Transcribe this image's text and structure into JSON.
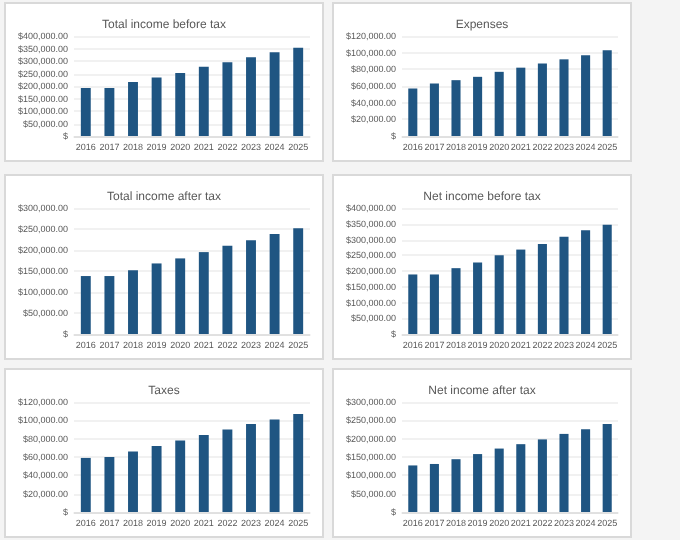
{
  "chart_data": [
    {
      "type": "bar",
      "title": "Total income before tax",
      "categories": [
        "2016",
        "2017",
        "2018",
        "2019",
        "2020",
        "2021",
        "2022",
        "2023",
        "2024",
        "2025"
      ],
      "grid": "y",
      "series": [
        {
          "color": "#1f5582",
          "values": [
            192000,
            192000,
            216000,
            234000,
            252000,
            277000,
            295000,
            315000,
            335000,
            353000
          ]
        }
      ],
      "ylim": [
        0,
        400000
      ],
      "yticks": [
        {
          "value": 0,
          "label": "$"
        },
        {
          "value": 50000,
          "label": "$50,000.00"
        },
        {
          "value": 100000,
          "label": "$100,000.00"
        },
        {
          "value": 150000,
          "label": "$150,000.00"
        },
        {
          "value": 200000,
          "label": "$200,000.00"
        },
        {
          "value": 250000,
          "label": "$250,000.00"
        },
        {
          "value": 300000,
          "label": "$300,000.00"
        },
        {
          "value": 350000,
          "label": "$350,000.00"
        },
        {
          "value": 400000,
          "label": "$400,000.00"
        }
      ]
    },
    {
      "type": "bar",
      "title": "Expenses",
      "categories": [
        "2016",
        "2017",
        "2018",
        "2019",
        "2020",
        "2021",
        "2022",
        "2023",
        "2024",
        "2025"
      ],
      "grid": "y",
      "series": [
        {
          "color": "#1f5582",
          "values": [
            57000,
            63000,
            67000,
            71000,
            77000,
            82000,
            87000,
            92000,
            97000,
            103000
          ]
        }
      ],
      "ylim": [
        0,
        120000
      ],
      "yticks": [
        {
          "value": 0,
          "label": "$"
        },
        {
          "value": 20000,
          "label": "$20,000.00"
        },
        {
          "value": 40000,
          "label": "$40,000.00"
        },
        {
          "value": 60000,
          "label": "$60,000.00"
        },
        {
          "value": 80000,
          "label": "$80,000.00"
        },
        {
          "value": 100000,
          "label": "$100,000.00"
        },
        {
          "value": 120000,
          "label": "$120,000.00"
        }
      ]
    },
    {
      "type": "bar",
      "title": "Total income after tax",
      "categories": [
        "2016",
        "2017",
        "2018",
        "2019",
        "2020",
        "2021",
        "2022",
        "2023",
        "2024",
        "2025"
      ],
      "grid": "y",
      "series": [
        {
          "color": "#1f5582",
          "values": [
            138000,
            138000,
            152000,
            168000,
            180000,
            195000,
            210000,
            223000,
            238000,
            252000
          ]
        }
      ],
      "ylim": [
        0,
        300000
      ],
      "yticks": [
        {
          "value": 0,
          "label": "$"
        },
        {
          "value": 50000,
          "label": "$50,000.00"
        },
        {
          "value": 100000,
          "label": "$100,000.00"
        },
        {
          "value": 150000,
          "label": "$150,000.00"
        },
        {
          "value": 200000,
          "label": "$200,000.00"
        },
        {
          "value": 250000,
          "label": "$250,000.00"
        },
        {
          "value": 300000,
          "label": "$300,000.00"
        }
      ]
    },
    {
      "type": "bar",
      "title": "Net income before tax",
      "categories": [
        "2016",
        "2017",
        "2018",
        "2019",
        "2020",
        "2021",
        "2022",
        "2023",
        "2024",
        "2025"
      ],
      "grid": "y",
      "series": [
        {
          "color": "#1f5582",
          "values": [
            189000,
            189000,
            209000,
            227000,
            250000,
            268000,
            286000,
            309000,
            329000,
            347000
          ]
        }
      ],
      "ylim": [
        0,
        400000
      ],
      "yticks": [
        {
          "value": 0,
          "label": "$"
        },
        {
          "value": 50000,
          "label": "$50,000.00"
        },
        {
          "value": 100000,
          "label": "$100,000.00"
        },
        {
          "value": 150000,
          "label": "$150,000.00"
        },
        {
          "value": 200000,
          "label": "$200,000.00"
        },
        {
          "value": 250000,
          "label": "$250,000.00"
        },
        {
          "value": 300000,
          "label": "$300,000.00"
        },
        {
          "value": 350000,
          "label": "$350,000.00"
        },
        {
          "value": 400000,
          "label": "$400,000.00"
        }
      ]
    },
    {
      "type": "bar",
      "title": "Taxes",
      "categories": [
        "2016",
        "2017",
        "2018",
        "2019",
        "2020",
        "2021",
        "2022",
        "2023",
        "2024",
        "2025"
      ],
      "grid": "y",
      "series": [
        {
          "color": "#1f5582",
          "values": [
            59000,
            60000,
            66000,
            72000,
            78000,
            84000,
            90000,
            96000,
            101000,
            107000
          ]
        }
      ],
      "ylim": [
        0,
        120000
      ],
      "yticks": [
        {
          "value": 0,
          "label": "$"
        },
        {
          "value": 20000,
          "label": "$20,000.00"
        },
        {
          "value": 40000,
          "label": "$40,000.00"
        },
        {
          "value": 60000,
          "label": "$60,000.00"
        },
        {
          "value": 80000,
          "label": "$80,000.00"
        },
        {
          "value": 100000,
          "label": "$100,000.00"
        },
        {
          "value": 120000,
          "label": "$120,000.00"
        }
      ]
    },
    {
      "type": "bar",
      "title": "Net income after tax",
      "categories": [
        "2016",
        "2017",
        "2018",
        "2019",
        "2020",
        "2021",
        "2022",
        "2023",
        "2024",
        "2025"
      ],
      "grid": "y",
      "series": [
        {
          "color": "#1f5582",
          "values": [
            127000,
            131000,
            144000,
            158000,
            173000,
            185000,
            198000,
            213000,
            226000,
            240000
          ]
        }
      ],
      "ylim": [
        0,
        300000
      ],
      "yticks": [
        {
          "value": 0,
          "label": "$"
        },
        {
          "value": 50000,
          "label": "$50,000.00"
        },
        {
          "value": 100000,
          "label": "$100,000.00"
        },
        {
          "value": 150000,
          "label": "$150,000.00"
        },
        {
          "value": 200000,
          "label": "$200,000.00"
        },
        {
          "value": 250000,
          "label": "$250,000.00"
        },
        {
          "value": 300000,
          "label": "$300,000.00"
        }
      ]
    }
  ]
}
